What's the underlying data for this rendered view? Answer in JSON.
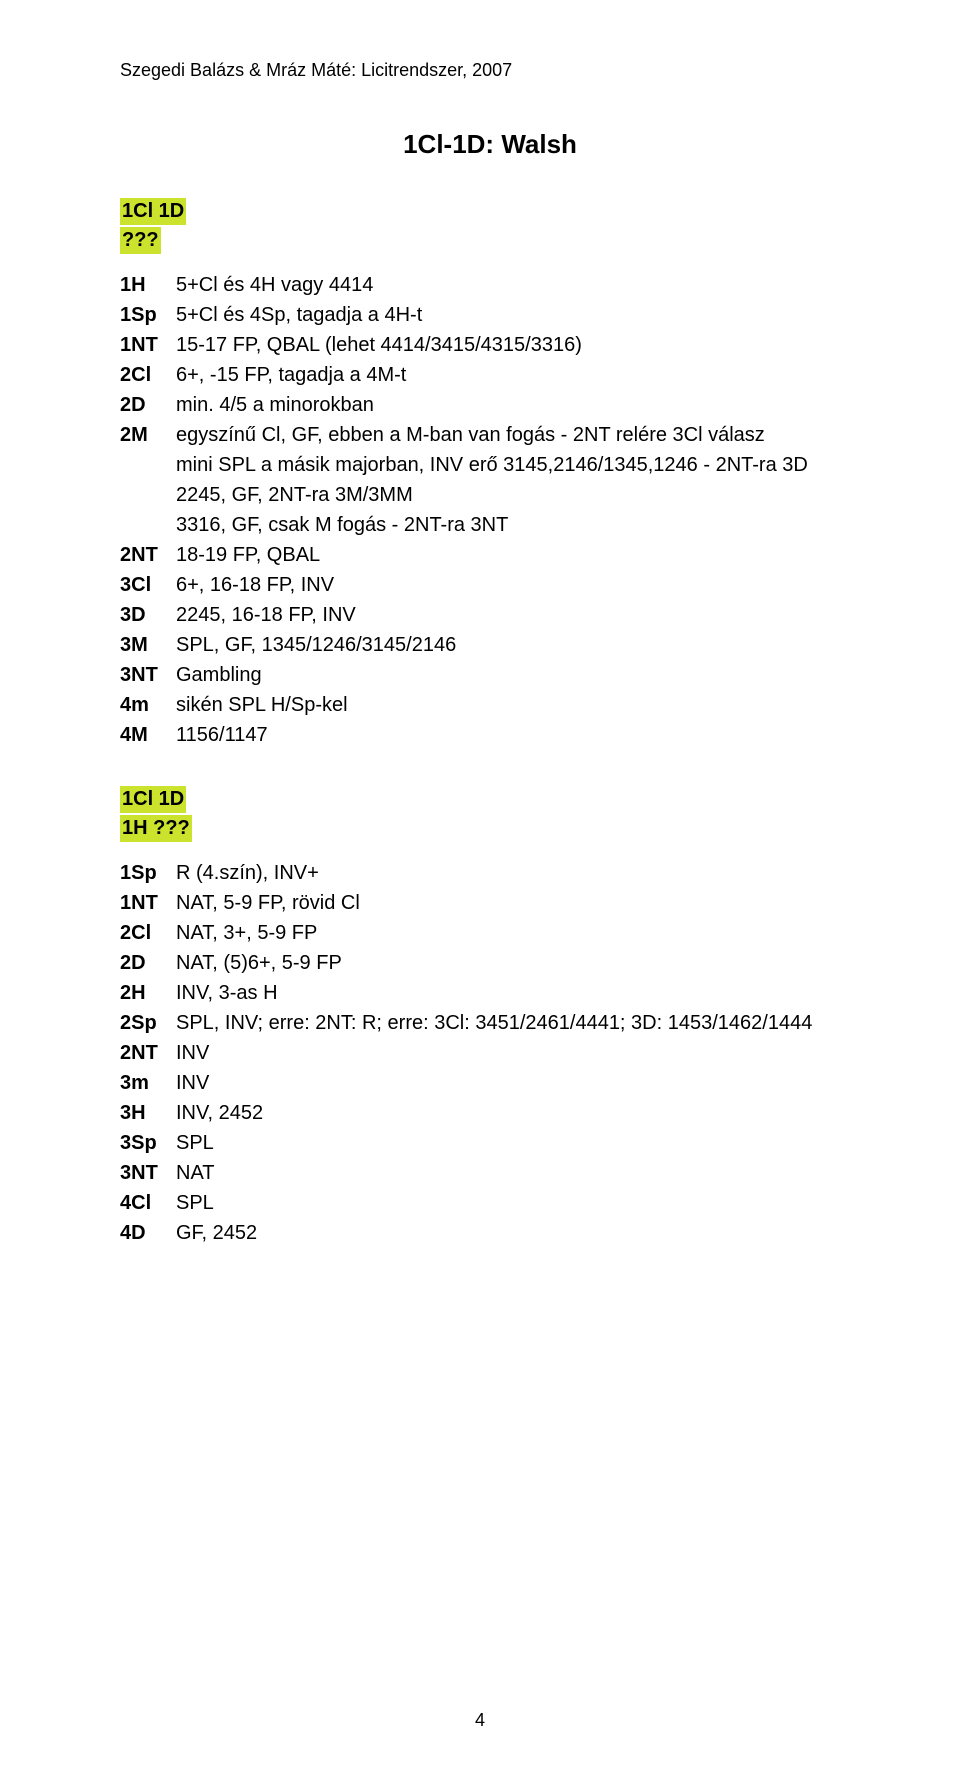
{
  "colors": {
    "highlight_bg": "#cbe32d",
    "text": "#000000",
    "background": "#ffffff"
  },
  "header": "Szegedi Balázs & Mráz Máté: Licitrendszer, 2007",
  "title": "1Cl-1D: Walsh",
  "page_number": "4",
  "block1": {
    "hl_line1": "1Cl  1D",
    "hl_line2": "???",
    "rows": [
      {
        "bid": "1H",
        "desc": "5+Cl és 4H vagy 4414"
      },
      {
        "bid": "1Sp",
        "desc": "5+Cl és 4Sp, tagadja a 4H-t"
      },
      {
        "bid": "1NT",
        "desc": "15-17 FP, QBAL (lehet 4414/3415/4315/3316)"
      },
      {
        "bid": "2Cl",
        "desc": "6+, -15 FP, tagadja a 4M-t"
      },
      {
        "bid": "2D",
        "desc": "min. 4/5 a minorokban"
      },
      {
        "bid": "2M",
        "desc": "egyszínű Cl, GF, ebben a M-ban van fogás - 2NT relére 3Cl válasz"
      }
    ],
    "indent_lines": [
      "mini SPL a másik majorban, INV erő 3145,2146/1345,1246 - 2NT-ra 3D",
      "2245, GF, 2NT-ra 3M/3MM",
      "3316, GF, csak M fogás - 2NT-ra 3NT"
    ],
    "rows2": [
      {
        "bid": "2NT",
        "desc": "18-19 FP, QBAL"
      },
      {
        "bid": "3Cl",
        "desc": "6+, 16-18 FP, INV"
      },
      {
        "bid": "3D",
        "desc": "2245, 16-18 FP, INV"
      },
      {
        "bid": "3M",
        "desc": "SPL, GF, 1345/1246/3145/2146"
      },
      {
        "bid": "3NT",
        "desc": "Gambling"
      },
      {
        "bid": "4m",
        "desc": "sikén SPL H/Sp-kel"
      },
      {
        "bid": "4M",
        "desc": "1156/1147"
      }
    ]
  },
  "block2": {
    "hl_line1": "1Cl 1D",
    "hl_line2": "1H ???",
    "rows": [
      {
        "bid": "1Sp",
        "desc": "R (4.szín), INV+"
      },
      {
        "bid": "1NT",
        "desc": "NAT, 5-9 FP, rövid Cl"
      },
      {
        "bid": "2Cl",
        "desc": "NAT, 3+, 5-9 FP"
      },
      {
        "bid": "2D",
        "desc": "NAT, (5)6+, 5-9 FP"
      },
      {
        "bid": "2H",
        "desc": "INV, 3-as H"
      },
      {
        "bid": "2Sp",
        "desc": "SPL, INV; erre: 2NT: R; erre: 3Cl: 3451/2461/4441; 3D: 1453/1462/1444"
      },
      {
        "bid": "2NT",
        "desc": "INV"
      },
      {
        "bid": "3m",
        "desc": "INV"
      },
      {
        "bid": "3H",
        "desc": "INV, 2452"
      },
      {
        "bid": "3Sp",
        "desc": "SPL"
      },
      {
        "bid": "3NT",
        "desc": "NAT"
      },
      {
        "bid": "4Cl",
        "desc": "SPL"
      },
      {
        "bid": "4D",
        "desc": "GF, 2452"
      }
    ]
  }
}
